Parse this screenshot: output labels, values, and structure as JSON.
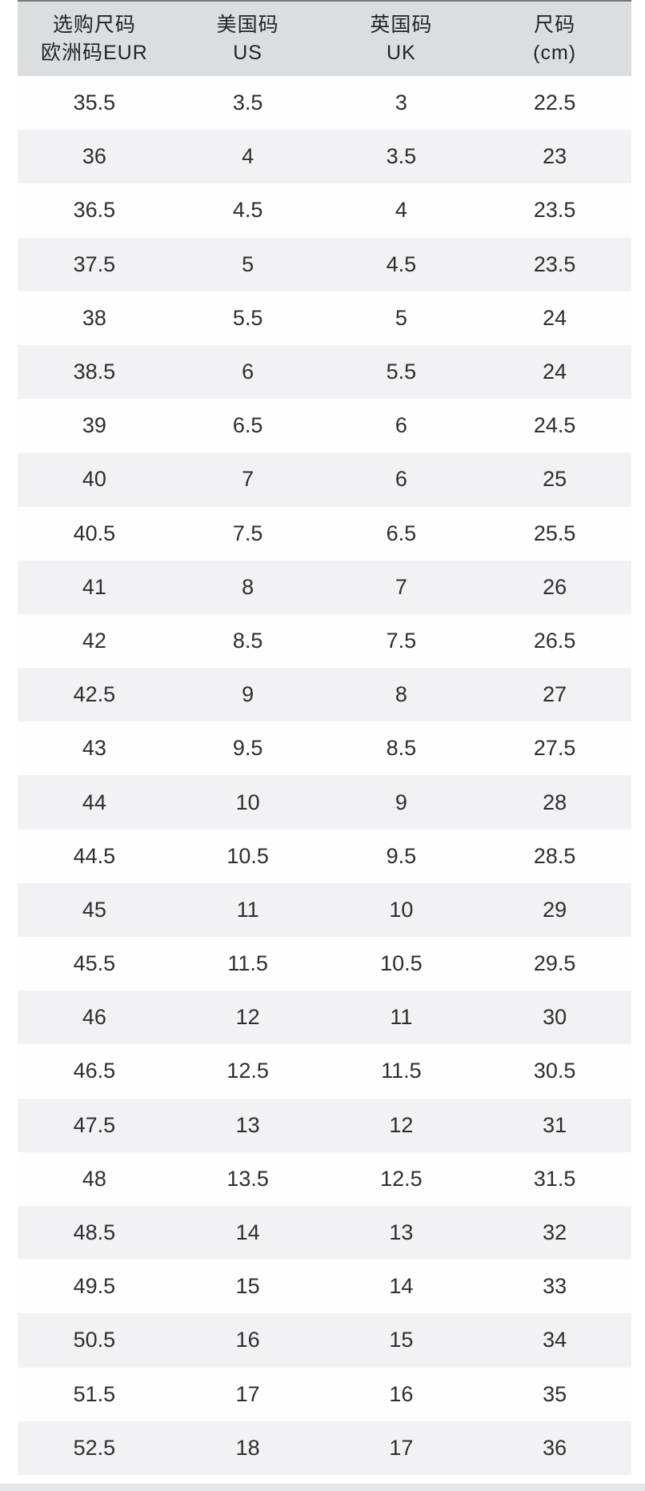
{
  "header": {
    "cells": [
      {
        "name": "eur",
        "line1": "选购尺码",
        "line2": "欧洲码EUR"
      },
      {
        "name": "us",
        "line1": "美国码",
        "line2": "US"
      },
      {
        "name": "uk",
        "line1": "英国码",
        "line2": "UK"
      },
      {
        "name": "cm",
        "line1": "尺码",
        "line2": "(cm)"
      }
    ]
  },
  "chart_data": {
    "type": "table",
    "columns": [
      "选购尺码 欧洲码EUR",
      "美国码 US",
      "英国码 UK",
      "尺码 (cm)"
    ],
    "rows": [
      [
        "35.5",
        "3.5",
        "3",
        "22.5"
      ],
      [
        "36",
        "4",
        "3.5",
        "23"
      ],
      [
        "36.5",
        "4.5",
        "4",
        "23.5"
      ],
      [
        "37.5",
        "5",
        "4.5",
        "23.5"
      ],
      [
        "38",
        "5.5",
        "5",
        "24"
      ],
      [
        "38.5",
        "6",
        "5.5",
        "24"
      ],
      [
        "39",
        "6.5",
        "6",
        "24.5"
      ],
      [
        "40",
        "7",
        "6",
        "25"
      ],
      [
        "40.5",
        "7.5",
        "6.5",
        "25.5"
      ],
      [
        "41",
        "8",
        "7",
        "26"
      ],
      [
        "42",
        "8.5",
        "7.5",
        "26.5"
      ],
      [
        "42.5",
        "9",
        "8",
        "27"
      ],
      [
        "43",
        "9.5",
        "8.5",
        "27.5"
      ],
      [
        "44",
        "10",
        "9",
        "28"
      ],
      [
        "44.5",
        "10.5",
        "9.5",
        "28.5"
      ],
      [
        "45",
        "11",
        "10",
        "29"
      ],
      [
        "45.5",
        "11.5",
        "10.5",
        "29.5"
      ],
      [
        "46",
        "12",
        "11",
        "30"
      ],
      [
        "46.5",
        "12.5",
        "11.5",
        "30.5"
      ],
      [
        "47.5",
        "13",
        "12",
        "31"
      ],
      [
        "48",
        "13.5",
        "12.5",
        "31.5"
      ],
      [
        "48.5",
        "14",
        "13",
        "32"
      ],
      [
        "49.5",
        "15",
        "14",
        "33"
      ],
      [
        "50.5",
        "16",
        "15",
        "34"
      ],
      [
        "51.5",
        "17",
        "16",
        "35"
      ],
      [
        "52.5",
        "18",
        "17",
        "36"
      ]
    ]
  },
  "colors": {
    "page_bg": "#ffffff",
    "header_bg": "#dcddde",
    "row_bg": "#fefefe",
    "row_alt_bg": "#f2f2f4",
    "text": "#2e2e30",
    "header_text": "#232427",
    "top_edge": "#77787a",
    "bottom_strip": "#e6e7e9"
  }
}
